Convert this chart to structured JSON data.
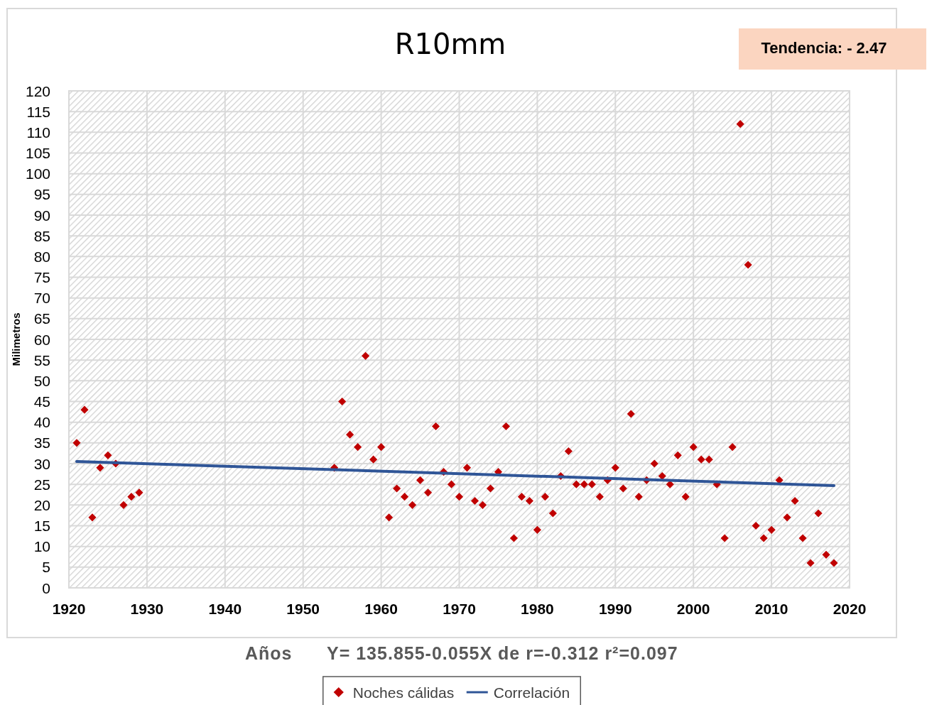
{
  "chart_data": {
    "type": "scatter",
    "title": "R10mm",
    "xlabel": "Años",
    "ylabel": "Milimetros",
    "annotations": [
      "Tendencia: - 2.47",
      "Y= 135.855-0.055X de  r=-0.312  r²=0.097"
    ],
    "xlim": [
      1920,
      2020
    ],
    "xticks": [
      1920,
      1930,
      1940,
      1950,
      1960,
      1970,
      1980,
      1990,
      2000,
      2010,
      2020
    ],
    "ylim": [
      0,
      120
    ],
    "yticks": [
      0,
      5,
      10,
      15,
      20,
      25,
      30,
      35,
      40,
      45,
      50,
      55,
      60,
      65,
      70,
      75,
      80,
      85,
      90,
      95,
      100,
      105,
      110,
      115,
      120
    ],
    "grid": true,
    "legend": "bottom",
    "series": [
      {
        "name": "Noches cálidas",
        "color": "#c00000",
        "marker": "diamond",
        "x": [
          1921,
          1922,
          1923,
          1924,
          1925,
          1926,
          1927,
          1928,
          1929,
          1954,
          1955,
          1956,
          1957,
          1958,
          1959,
          1960,
          1961,
          1962,
          1963,
          1964,
          1965,
          1966,
          1967,
          1968,
          1969,
          1970,
          1971,
          1972,
          1973,
          1974,
          1975,
          1976,
          1977,
          1978,
          1979,
          1980,
          1981,
          1982,
          1983,
          1984,
          1985,
          1986,
          1987,
          1988,
          1989,
          1990,
          1991,
          1992,
          1993,
          1994,
          1995,
          1996,
          1997,
          1998,
          1999,
          2000,
          2001,
          2002,
          2003,
          2004,
          2005,
          2006,
          2007,
          2008,
          2009,
          2010,
          2011,
          2012,
          2013,
          2014,
          2015,
          2016,
          2017,
          2018
        ],
        "values": [
          35,
          43,
          17,
          29,
          32,
          30,
          20,
          22,
          23,
          29,
          45,
          37,
          34,
          56,
          31,
          34,
          17,
          24,
          22,
          20,
          26,
          23,
          39,
          28,
          25,
          22,
          29,
          21,
          20,
          24,
          28,
          39,
          12,
          22,
          21,
          14,
          22,
          18,
          27,
          33,
          25,
          25,
          25,
          22,
          26,
          29,
          24,
          42,
          22,
          26,
          30,
          27,
          25,
          32,
          22,
          34,
          31,
          31,
          25,
          12,
          34,
          112,
          78,
          15,
          12,
          14,
          26,
          17,
          21,
          12,
          6,
          18,
          8,
          6
        ]
      },
      {
        "name": "Correlación",
        "type": "line",
        "color": "#2f5597",
        "marker": "none",
        "line_style": "solid",
        "x": [
          1921,
          2018
        ],
        "values": [
          30.5,
          24.7
        ]
      }
    ]
  }
}
